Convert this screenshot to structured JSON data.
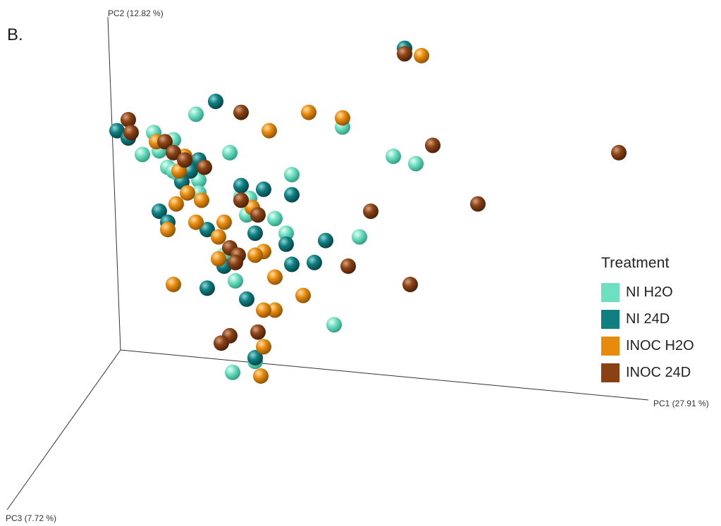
{
  "panel_label": "B.",
  "colors": {
    "NI H2O": "#6fdfc2",
    "NI 24D": "#0f7f82",
    "INOC H2O": "#e88b0c",
    "INOC 24D": "#8a4215"
  },
  "chart_data": {
    "type": "scatter",
    "projection": "3d",
    "xlabel": "PC1 (27.91 %)",
    "ylabel": "PC2 (12.82 %)",
    "zlabel": "PC3 (7.72 %)",
    "grid": false,
    "legend": {
      "title": "Treatment",
      "position": "right"
    },
    "series": [
      {
        "name": "NI H2O",
        "points": [
          [
            0.085,
            0.715
          ],
          [
            0.16,
            0.765
          ],
          [
            0.12,
            0.695
          ],
          [
            0.095,
            0.665
          ],
          [
            0.065,
            0.655
          ],
          [
            0.11,
            0.62
          ],
          [
            0.12,
            0.61
          ],
          [
            0.13,
            0.6
          ],
          [
            0.165,
            0.585
          ],
          [
            0.165,
            0.55
          ],
          [
            0.22,
            0.66
          ],
          [
            0.24,
            0.54
          ],
          [
            0.255,
            0.535
          ],
          [
            0.33,
            0.6
          ],
          [
            0.42,
            0.73
          ],
          [
            0.51,
            0.65
          ],
          [
            0.55,
            0.63
          ],
          [
            0.3,
            0.48
          ],
          [
            0.25,
            0.49
          ],
          [
            0.32,
            0.44
          ],
          [
            0.45,
            0.43
          ],
          [
            0.21,
            0.38
          ],
          [
            0.23,
            0.31
          ],
          [
            0.405,
            0.19
          ],
          [
            0.225,
            0.06
          ],
          [
            0.265,
            0.09
          ]
        ]
      },
      {
        "name": "NI 24D",
        "points": [
          [
            0.02,
            0.72
          ],
          [
            0.04,
            0.7
          ],
          [
            0.165,
            0.64
          ],
          [
            0.15,
            0.61
          ],
          [
            0.135,
            0.58
          ],
          [
            0.195,
            0.8
          ],
          [
            0.24,
            0.57
          ],
          [
            0.28,
            0.56
          ],
          [
            0.33,
            0.545
          ],
          [
            0.095,
            0.5
          ],
          [
            0.11,
            0.47
          ],
          [
            0.18,
            0.45
          ],
          [
            0.265,
            0.44
          ],
          [
            0.39,
            0.42
          ],
          [
            0.53,
            0.945
          ],
          [
            0.37,
            0.36
          ],
          [
            0.21,
            0.35
          ],
          [
            0.25,
            0.26
          ],
          [
            0.33,
            0.355
          ],
          [
            0.18,
            0.29
          ],
          [
            0.265,
            0.1
          ],
          [
            0.32,
            0.41
          ]
        ]
      },
      {
        "name": "INOC H2O",
        "points": [
          [
            0.09,
            0.69
          ],
          [
            0.14,
            0.65
          ],
          [
            0.13,
            0.61
          ],
          [
            0.145,
            0.55
          ],
          [
            0.17,
            0.53
          ],
          [
            0.21,
            0.47
          ],
          [
            0.29,
            0.72
          ],
          [
            0.36,
            0.77
          ],
          [
            0.42,
            0.755
          ],
          [
            0.56,
            0.925
          ],
          [
            0.26,
            0.51
          ],
          [
            0.125,
            0.52
          ],
          [
            0.16,
            0.47
          ],
          [
            0.11,
            0.45
          ],
          [
            0.2,
            0.43
          ],
          [
            0.28,
            0.39
          ],
          [
            0.265,
            0.38
          ],
          [
            0.2,
            0.37
          ],
          [
            0.12,
            0.3
          ],
          [
            0.3,
            0.32
          ],
          [
            0.35,
            0.27
          ],
          [
            0.3,
            0.23
          ],
          [
            0.28,
            0.13
          ],
          [
            0.275,
            0.05
          ],
          [
            0.28,
            0.23
          ]
        ]
      },
      {
        "name": "INOC 24D",
        "points": [
          [
            0.04,
            0.75
          ],
          [
            0.045,
            0.715
          ],
          [
            0.105,
            0.69
          ],
          [
            0.12,
            0.66
          ],
          [
            0.14,
            0.64
          ],
          [
            0.175,
            0.62
          ],
          [
            0.24,
            0.77
          ],
          [
            0.24,
            0.53
          ],
          [
            0.22,
            0.4
          ],
          [
            0.235,
            0.38
          ],
          [
            0.23,
            0.36
          ],
          [
            0.27,
            0.49
          ],
          [
            0.47,
            0.5
          ],
          [
            0.58,
            0.68
          ],
          [
            0.53,
            0.93
          ],
          [
            0.66,
            0.52
          ],
          [
            0.43,
            0.35
          ],
          [
            0.54,
            0.3
          ],
          [
            0.91,
            0.66
          ],
          [
            0.22,
            0.16
          ],
          [
            0.205,
            0.14
          ],
          [
            0.27,
            0.17
          ]
        ]
      }
    ]
  }
}
